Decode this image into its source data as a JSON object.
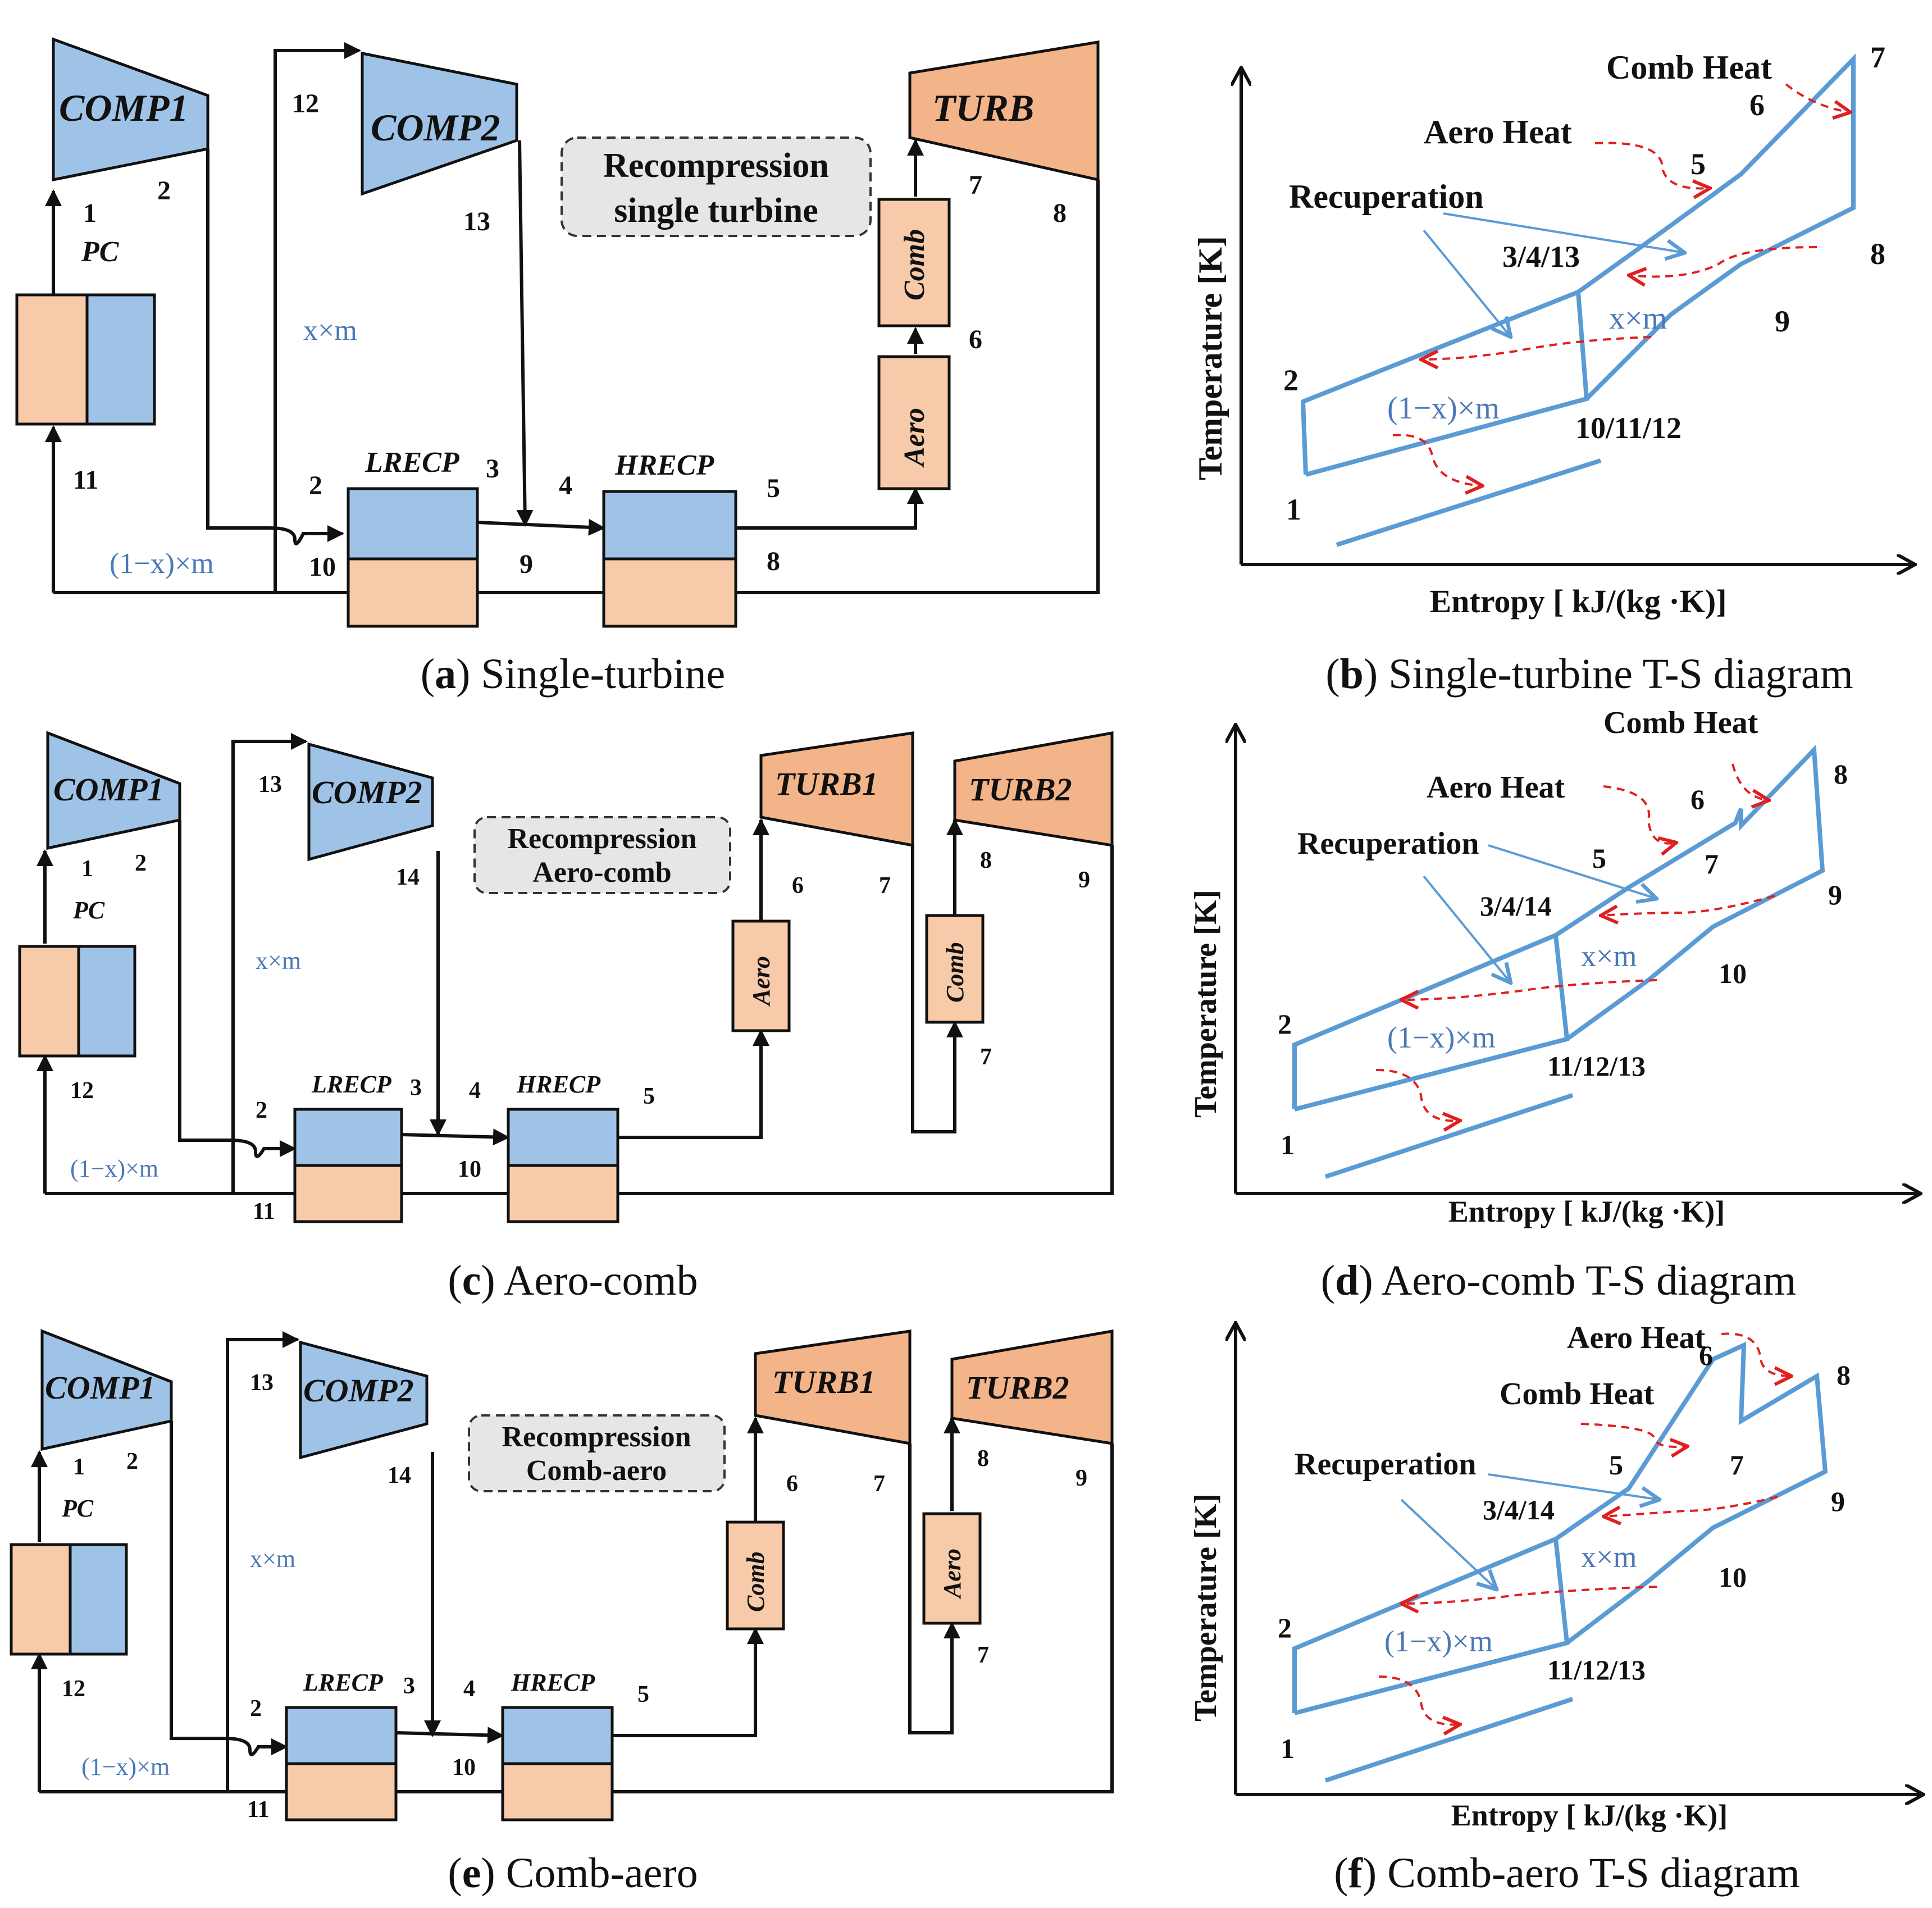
{
  "panels": {
    "a": {
      "caption_letter": "a",
      "caption_text": " Single-turbine",
      "comp1": "COMP1",
      "comp2": "COMP2",
      "turb": "TURB",
      "pc": "PC",
      "lrecp": "LRECP",
      "hrecp": "HRECP",
      "aero": "Aero",
      "comb": "Comb",
      "box_line1": "Recompression",
      "box_line2": "single turbine",
      "flow_x": "x×m",
      "flow_1x": "(1−x)×m",
      "states": [
        "1",
        "2",
        "2",
        "3",
        "4",
        "5",
        "6",
        "7",
        "8",
        "8",
        "9",
        "10",
        "11",
        "12",
        "13"
      ]
    },
    "b": {
      "caption_letter": "b",
      "caption_text": " Single-turbine T-S diagram",
      "ylabel": "Temperature [K]",
      "xlabel": "Entropy [ kJ/(kg ·K)]",
      "comb_heat": "Comb Heat",
      "aero_heat": "Aero Heat",
      "recuperation": "Recuperation",
      "flow_x": "x×m",
      "flow_1x": "(1−x)×m",
      "points": [
        "1",
        "2",
        "3/4/13",
        "5",
        "6",
        "7",
        "8",
        "9",
        "10/11/12"
      ]
    },
    "c": {
      "caption_letter": "c",
      "caption_text": " Aero-comb",
      "comp1": "COMP1",
      "comp2": "COMP2",
      "turb1": "TURB1",
      "turb2": "TURB2",
      "pc": "PC",
      "lrecp": "LRECP",
      "hrecp": "HRECP",
      "heater1": "Aero",
      "heater2": "Comb",
      "box_line1": "Recompression",
      "box_line2": "Aero-comb",
      "flow_x": "x×m",
      "flow_1x": "(1−x)×m",
      "states": [
        "1",
        "2",
        "2",
        "3",
        "4",
        "5",
        "6",
        "7",
        "8",
        "9",
        "7",
        "10",
        "11",
        "12",
        "13",
        "14"
      ]
    },
    "d": {
      "caption_letter": "d",
      "caption_text": " Aero-comb T-S diagram",
      "ylabel": "Temperature [K]",
      "xlabel": "Entropy [ kJ/(kg ·K)]",
      "comb_heat": "Comb Heat",
      "aero_heat": "Aero Heat",
      "recuperation": "Recuperation",
      "flow_x": "x×m",
      "flow_1x": "(1−x)×m",
      "points": [
        "1",
        "2",
        "3/4/14",
        "5",
        "6",
        "7",
        "8",
        "9",
        "10",
        "11/12/13"
      ]
    },
    "e": {
      "caption_letter": "e",
      "caption_text": " Comb-aero",
      "comp1": "COMP1",
      "comp2": "COMP2",
      "turb1": "TURB1",
      "turb2": "TURB2",
      "pc": "PC",
      "lrecp": "LRECP",
      "hrecp": "HRECP",
      "heater1": "Comb",
      "heater2": "Aero",
      "box_line1": "Recompression",
      "box_line2": "Comb-aero",
      "flow_x": "x×m",
      "flow_1x": "(1−x)×m",
      "states": [
        "1",
        "2",
        "2",
        "3",
        "4",
        "5",
        "6",
        "7",
        "8",
        "9",
        "7",
        "10",
        "11",
        "12",
        "13",
        "14"
      ]
    },
    "f": {
      "caption_letter": "f",
      "caption_text": " Comb-aero T-S diagram",
      "ylabel": "Temperature [K]",
      "xlabel": "Entropy [ kJ/(kg ·K)]",
      "comb_heat": "Comb Heat",
      "aero_heat": "Aero Heat",
      "recuperation": "Recuperation",
      "flow_x": "x×m",
      "flow_1x": "(1−x)×m",
      "points": [
        "1",
        "2",
        "3/4/14",
        "5",
        "6",
        "7",
        "8",
        "9",
        "10",
        "11/12/13"
      ]
    }
  },
  "colors": {
    "compressor": "#9fc3e6",
    "heater": "#f7cba9",
    "turbine": "#f3b48a",
    "cycle_line": "#5b9bd5",
    "heat_arrow": "#e02020"
  }
}
